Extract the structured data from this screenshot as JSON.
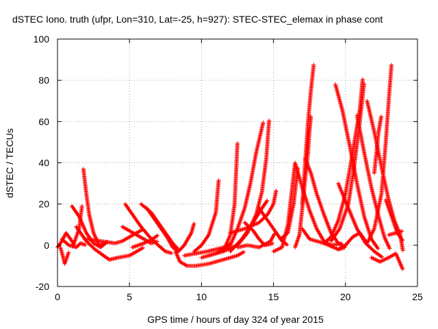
{
  "chart_data": {
    "type": "scatter",
    "title": "dSTEC Iono. truth (ufpr, Lon=310, Lat=-25, h=927): STEC-STEC_elemax in phase cont",
    "xlabel": "GPS time / hours of day 324 of year 2015",
    "ylabel": "dSTEC  / TECUs",
    "xlim": [
      0,
      25
    ],
    "ylim": [
      -20,
      100
    ],
    "xticks": [
      "0",
      "5",
      "10",
      "15",
      "20",
      "25"
    ],
    "yticks": [
      "-20",
      "0",
      "20",
      "40",
      "60",
      "80",
      "100"
    ],
    "grid": true,
    "marker": "plus",
    "color": "#ff0000",
    "series": [
      {
        "points": [
          [
            0.0,
            -1
          ],
          [
            0.3,
            2
          ],
          [
            0.6,
            6
          ],
          [
            0.9,
            3
          ],
          [
            1.2,
            0
          ]
        ]
      },
      {
        "points": [
          [
            0.2,
            -1
          ],
          [
            0.4,
            -6
          ],
          [
            0.5,
            -9
          ],
          [
            0.6,
            -7
          ],
          [
            0.8,
            -3
          ]
        ]
      },
      {
        "points": [
          [
            0.3,
            3
          ],
          [
            0.8,
            0
          ],
          [
            1.3,
            -1
          ],
          [
            1.6,
            1
          ],
          [
            2.0,
            0
          ]
        ]
      },
      {
        "points": [
          [
            1.8,
            37
          ],
          [
            2.0,
            25
          ],
          [
            2.2,
            15
          ],
          [
            2.5,
            6
          ],
          [
            2.9,
            0
          ],
          [
            3.3,
            1
          ]
        ]
      },
      {
        "points": [
          [
            1.7,
            19
          ],
          [
            1.5,
            8
          ],
          [
            1.2,
            2
          ],
          [
            1.0,
            -1
          ]
        ]
      },
      {
        "points": [
          [
            1.0,
            19
          ],
          [
            1.5,
            14
          ],
          [
            2.0,
            6
          ],
          [
            2.5,
            1
          ],
          [
            3.0,
            -1
          ],
          [
            3.5,
            2
          ]
        ]
      },
      {
        "points": [
          [
            1.3,
            9
          ],
          [
            2.0,
            2
          ],
          [
            2.6,
            -2
          ],
          [
            3.2,
            -5
          ],
          [
            3.6,
            -7
          ],
          [
            4.2,
            -6
          ],
          [
            5.0,
            -5
          ],
          [
            5.5,
            -3
          ],
          [
            6.0,
            -1
          ]
        ]
      },
      {
        "points": [
          [
            2.0,
            3
          ],
          [
            3.0,
            2
          ],
          [
            4.0,
            1
          ],
          [
            4.5,
            2
          ],
          [
            5.0,
            4
          ],
          [
            5.5,
            6
          ],
          [
            6.0,
            8
          ]
        ]
      },
      {
        "points": [
          [
            4.5,
            9
          ],
          [
            5.0,
            7
          ],
          [
            5.5,
            5
          ],
          [
            6.0,
            3
          ],
          [
            6.5,
            1
          ],
          [
            7.0,
            2
          ]
        ]
      },
      {
        "points": [
          [
            4.7,
            20
          ],
          [
            5.2,
            15
          ],
          [
            5.8,
            9
          ],
          [
            6.4,
            4
          ],
          [
            7.0,
            0
          ],
          [
            7.5,
            -3
          ],
          [
            8.0,
            -4
          ]
        ]
      },
      {
        "points": [
          [
            5.2,
            -1
          ],
          [
            6.0,
            1
          ],
          [
            6.6,
            3
          ],
          [
            7.0,
            5
          ]
        ]
      },
      {
        "points": [
          [
            5.8,
            20
          ],
          [
            6.5,
            16
          ],
          [
            7.0,
            11
          ],
          [
            7.6,
            5
          ],
          [
            8.0,
            1
          ],
          [
            8.4,
            -2
          ]
        ]
      },
      {
        "points": [
          [
            6.2,
            18
          ],
          [
            7.0,
            10
          ],
          [
            7.6,
            4
          ],
          [
            8.0,
            -1
          ],
          [
            8.4,
            -3
          ],
          [
            8.8,
            0
          ],
          [
            9.3,
            6
          ],
          [
            9.5,
            11
          ]
        ]
      },
      {
        "points": [
          [
            8.2,
            -3
          ],
          [
            8.5,
            -8
          ],
          [
            9.0,
            -10
          ],
          [
            9.6,
            -10
          ],
          [
            10.5,
            -9
          ],
          [
            11.5,
            -7
          ],
          [
            12.5,
            -5
          ],
          [
            13.0,
            -3
          ]
        ]
      },
      {
        "points": [
          [
            8.8,
            -5
          ],
          [
            9.6,
            -4
          ],
          [
            10.4,
            -3
          ],
          [
            11.0,
            -2
          ],
          [
            11.6,
            -1
          ],
          [
            12.0,
            1
          ]
        ]
      },
      {
        "points": [
          [
            9.5,
            -3
          ],
          [
            10.0,
            0
          ],
          [
            10.5,
            5
          ],
          [
            11.0,
            16
          ],
          [
            11.2,
            32
          ]
        ]
      },
      {
        "points": [
          [
            10.0,
            -6
          ],
          [
            11.0,
            -4
          ],
          [
            12.0,
            0
          ],
          [
            12.5,
            8
          ],
          [
            13.0,
            18
          ],
          [
            13.4,
            30
          ],
          [
            13.8,
            45
          ],
          [
            14.3,
            60
          ]
        ]
      },
      {
        "points": [
          [
            10.5,
            -5
          ],
          [
            11.5,
            -3
          ],
          [
            12.5,
            0
          ],
          [
            13.2,
            6
          ],
          [
            13.8,
            15
          ],
          [
            14.2,
            26
          ],
          [
            14.5,
            42
          ],
          [
            14.7,
            61
          ]
        ]
      },
      {
        "points": [
          [
            11.5,
            -3
          ],
          [
            12.0,
            5
          ],
          [
            12.3,
            20
          ],
          [
            12.5,
            50
          ]
        ]
      },
      {
        "points": [
          [
            12.0,
            -3
          ],
          [
            12.8,
            3
          ],
          [
            13.5,
            10
          ],
          [
            14.2,
            18
          ],
          [
            14.6,
            22
          ]
        ]
      },
      {
        "points": [
          [
            12.5,
            -1
          ],
          [
            13.2,
            0
          ],
          [
            14.0,
            -1
          ],
          [
            14.8,
            2
          ],
          [
            15.1,
            6
          ]
        ]
      },
      {
        "points": [
          [
            12.0,
            6
          ],
          [
            13.0,
            8
          ],
          [
            14.0,
            11
          ],
          [
            14.6,
            15
          ],
          [
            15.0,
            20
          ],
          [
            15.2,
            27
          ]
        ]
      },
      {
        "points": [
          [
            13.0,
            11
          ],
          [
            13.6,
            7
          ],
          [
            14.0,
            3
          ],
          [
            14.4,
            0
          ],
          [
            15.0,
            1
          ]
        ]
      },
      {
        "points": [
          [
            14.0,
            18
          ],
          [
            14.6,
            12
          ],
          [
            15.2,
            6
          ],
          [
            15.6,
            2
          ],
          [
            16.0,
            0
          ]
        ]
      },
      {
        "points": [
          [
            15.0,
            -3
          ],
          [
            15.6,
            -1
          ],
          [
            16.0,
            10
          ],
          [
            16.3,
            28
          ],
          [
            16.5,
            40
          ]
        ]
      },
      {
        "points": [
          [
            15.5,
            3
          ],
          [
            16.0,
            6
          ],
          [
            16.4,
            20
          ],
          [
            16.7,
            38
          ]
        ]
      },
      {
        "points": [
          [
            16.5,
            40
          ],
          [
            17.0,
            28
          ],
          [
            17.5,
            17
          ],
          [
            18.0,
            8
          ],
          [
            18.5,
            2
          ],
          [
            19.0,
            0
          ],
          [
            19.8,
            1
          ]
        ]
      },
      {
        "points": [
          [
            16.5,
            -1
          ],
          [
            16.8,
            5
          ],
          [
            17.0,
            18
          ],
          [
            17.2,
            32
          ],
          [
            17.4,
            45
          ],
          [
            17.5,
            55
          ],
          [
            17.6,
            63
          ]
        ]
      },
      {
        "points": [
          [
            17.0,
            20
          ],
          [
            17.2,
            40
          ],
          [
            17.4,
            60
          ],
          [
            17.6,
            75
          ],
          [
            17.8,
            88
          ]
        ]
      },
      {
        "points": [
          [
            17.2,
            42
          ],
          [
            17.6,
            35
          ],
          [
            18.0,
            25
          ],
          [
            18.5,
            15
          ],
          [
            19.0,
            6
          ],
          [
            19.5,
            1
          ],
          [
            20.0,
            -1
          ]
        ]
      },
      {
        "points": [
          [
            17.0,
            8
          ],
          [
            17.5,
            3
          ],
          [
            18.0,
            2
          ],
          [
            18.5,
            1
          ],
          [
            19.5,
            -2
          ],
          [
            20.0,
            -1
          ]
        ]
      },
      {
        "points": [
          [
            18.5,
            1
          ],
          [
            19.0,
            4
          ],
          [
            19.5,
            12
          ],
          [
            20.0,
            25
          ],
          [
            20.5,
            45
          ],
          [
            21.0,
            66
          ],
          [
            21.2,
            81
          ]
        ]
      },
      {
        "points": [
          [
            19.0,
            2
          ],
          [
            19.6,
            8
          ],
          [
            20.2,
            20
          ],
          [
            20.6,
            38
          ],
          [
            21.0,
            60
          ],
          [
            21.3,
            79
          ]
        ]
      },
      {
        "points": [
          [
            19.3,
            78
          ],
          [
            19.8,
            65
          ],
          [
            20.3,
            48
          ],
          [
            20.8,
            30
          ],
          [
            21.3,
            14
          ],
          [
            21.8,
            3
          ],
          [
            22.3,
            -2
          ]
        ]
      },
      {
        "points": [
          [
            19.5,
            30
          ],
          [
            20.2,
            18
          ],
          [
            20.8,
            8
          ],
          [
            21.4,
            1
          ],
          [
            22.0,
            -3
          ],
          [
            22.6,
            -6
          ]
        ]
      },
      {
        "points": [
          [
            20.8,
            63
          ],
          [
            21.3,
            45
          ],
          [
            21.8,
            28
          ],
          [
            22.3,
            14
          ],
          [
            22.7,
            4
          ],
          [
            23.1,
            -2
          ]
        ]
      },
      {
        "points": [
          [
            21.5,
            70
          ],
          [
            22.0,
            55
          ],
          [
            22.5,
            38
          ],
          [
            23.0,
            22
          ],
          [
            23.4,
            12
          ],
          [
            23.8,
            5
          ],
          [
            24.0,
            -3
          ]
        ]
      },
      {
        "points": [
          [
            21.5,
            1
          ],
          [
            22.0,
            8
          ],
          [
            22.5,
            25
          ],
          [
            22.8,
            50
          ],
          [
            23.0,
            70
          ],
          [
            23.2,
            88
          ]
        ]
      },
      {
        "points": [
          [
            22.0,
            35
          ],
          [
            22.3,
            55
          ],
          [
            22.5,
            63
          ]
        ]
      },
      {
        "points": [
          [
            21.8,
            -6
          ],
          [
            22.4,
            -8
          ],
          [
            23.0,
            -6
          ],
          [
            23.5,
            -4
          ],
          [
            24.0,
            -12
          ]
        ]
      },
      {
        "points": [
          [
            22.8,
            22
          ],
          [
            23.2,
            14
          ],
          [
            23.6,
            6
          ],
          [
            24.0,
            2
          ]
        ]
      },
      {
        "points": [
          [
            23.0,
            5
          ],
          [
            23.5,
            6
          ],
          [
            24.0,
            7
          ]
        ]
      },
      {
        "points": [
          [
            19.5,
            -2
          ],
          [
            20.0,
            0
          ],
          [
            20.5,
            4
          ],
          [
            21.0,
            6
          ],
          [
            21.5,
            1
          ]
        ]
      }
    ]
  }
}
